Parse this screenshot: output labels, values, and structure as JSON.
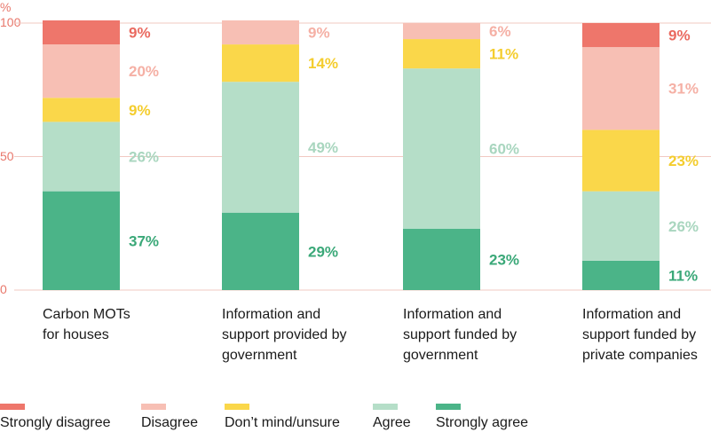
{
  "chart_data": {
    "type": "bar",
    "stacked": true,
    "yunit": "%",
    "ylim": [
      0,
      100
    ],
    "yticks": [
      0,
      50,
      100
    ],
    "grid": true,
    "categories": [
      [
        "Carbon MOTs",
        "for houses"
      ],
      [
        "Information and",
        "support provided by",
        "government"
      ],
      [
        "Information and",
        "support funded by",
        "government"
      ],
      [
        "Information and",
        "support funded by",
        "private companies"
      ]
    ],
    "series": [
      {
        "name": "Strongly agree",
        "color": "#4bb488",
        "values": [
          37,
          29,
          23,
          11
        ]
      },
      {
        "name": "Agree",
        "color": "#b5dec8",
        "values": [
          26,
          49,
          60,
          26
        ]
      },
      {
        "name": "Don’t mind/unsure",
        "color": "#fad74a",
        "values": [
          9,
          14,
          11,
          23
        ]
      },
      {
        "name": "Disagree",
        "color": "#f7bfb4",
        "values": [
          20,
          9,
          6,
          31
        ]
      },
      {
        "name": "Strongly disagree",
        "color": "#ee766b",
        "values": [
          9,
          0,
          0,
          9
        ]
      }
    ],
    "data_labels": [
      [
        "37%",
        "29%",
        "23%",
        "11%"
      ],
      [
        "26%",
        "49%",
        "60%",
        "26%"
      ],
      [
        "9%",
        "14%",
        "11%",
        "23%"
      ],
      [
        "20%",
        "9%",
        "6%",
        "31%"
      ],
      [
        "9%",
        "",
        "",
        "9%"
      ]
    ],
    "legend": {
      "placement": "bottom",
      "order": [
        "Strongly disagree",
        "Disagree",
        "Don’t mind/unsure",
        "Agree",
        "Strongly agree"
      ]
    }
  }
}
